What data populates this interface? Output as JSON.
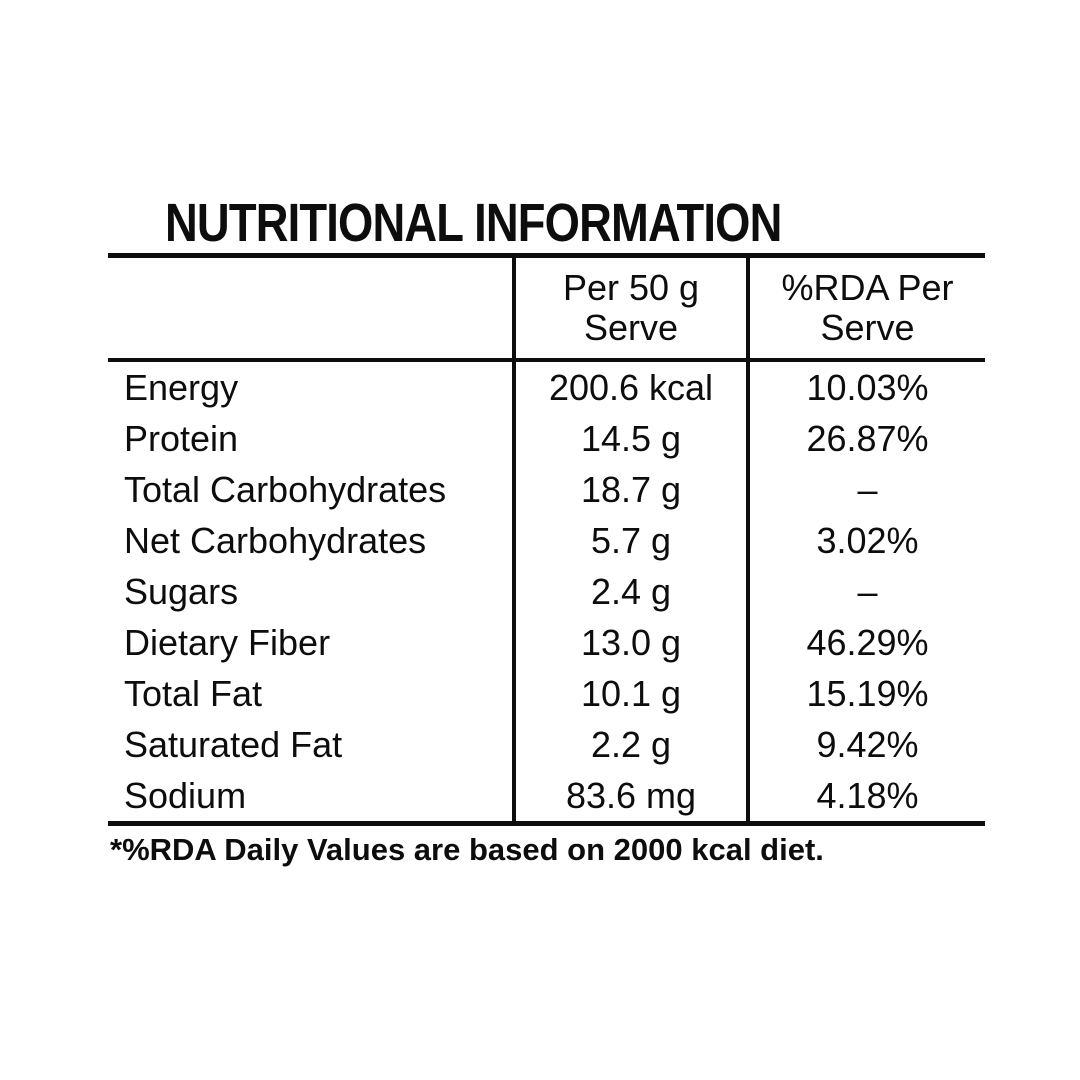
{
  "title": "NUTRITIONAL INFORMATION",
  "table": {
    "header": {
      "per_serve": "Per 50 g\nServe",
      "rda": "%RDA Per\nServe"
    },
    "rows": [
      {
        "label": "Energy",
        "per_serve": "200.6 kcal",
        "rda": "10.03%"
      },
      {
        "label": "Protein",
        "per_serve": "14.5 g",
        "rda": "26.87%"
      },
      {
        "label": "Total Carbohydrates",
        "per_serve": "18.7 g",
        "rda": "–"
      },
      {
        "label": "Net Carbohydrates",
        "per_serve": "5.7 g",
        "rda": "3.02%"
      },
      {
        "label": "Sugars",
        "per_serve": "2.4 g",
        "rda": "–"
      },
      {
        "label": "Dietary Fiber",
        "per_serve": "13.0 g",
        "rda": "46.29%"
      },
      {
        "label": "Total Fat",
        "per_serve": "10.1 g",
        "rda": "15.19%"
      },
      {
        "label": "Saturated Fat",
        "per_serve": "2.2 g",
        "rda": "9.42%"
      },
      {
        "label": "Sodium",
        "per_serve": "83.6 mg",
        "rda": "4.18%"
      }
    ]
  },
  "footnote": "*%RDA Daily Values are based on 2000 kcal diet.",
  "colors": {
    "background": "#ffffff",
    "text": "#0d0d0d"
  }
}
